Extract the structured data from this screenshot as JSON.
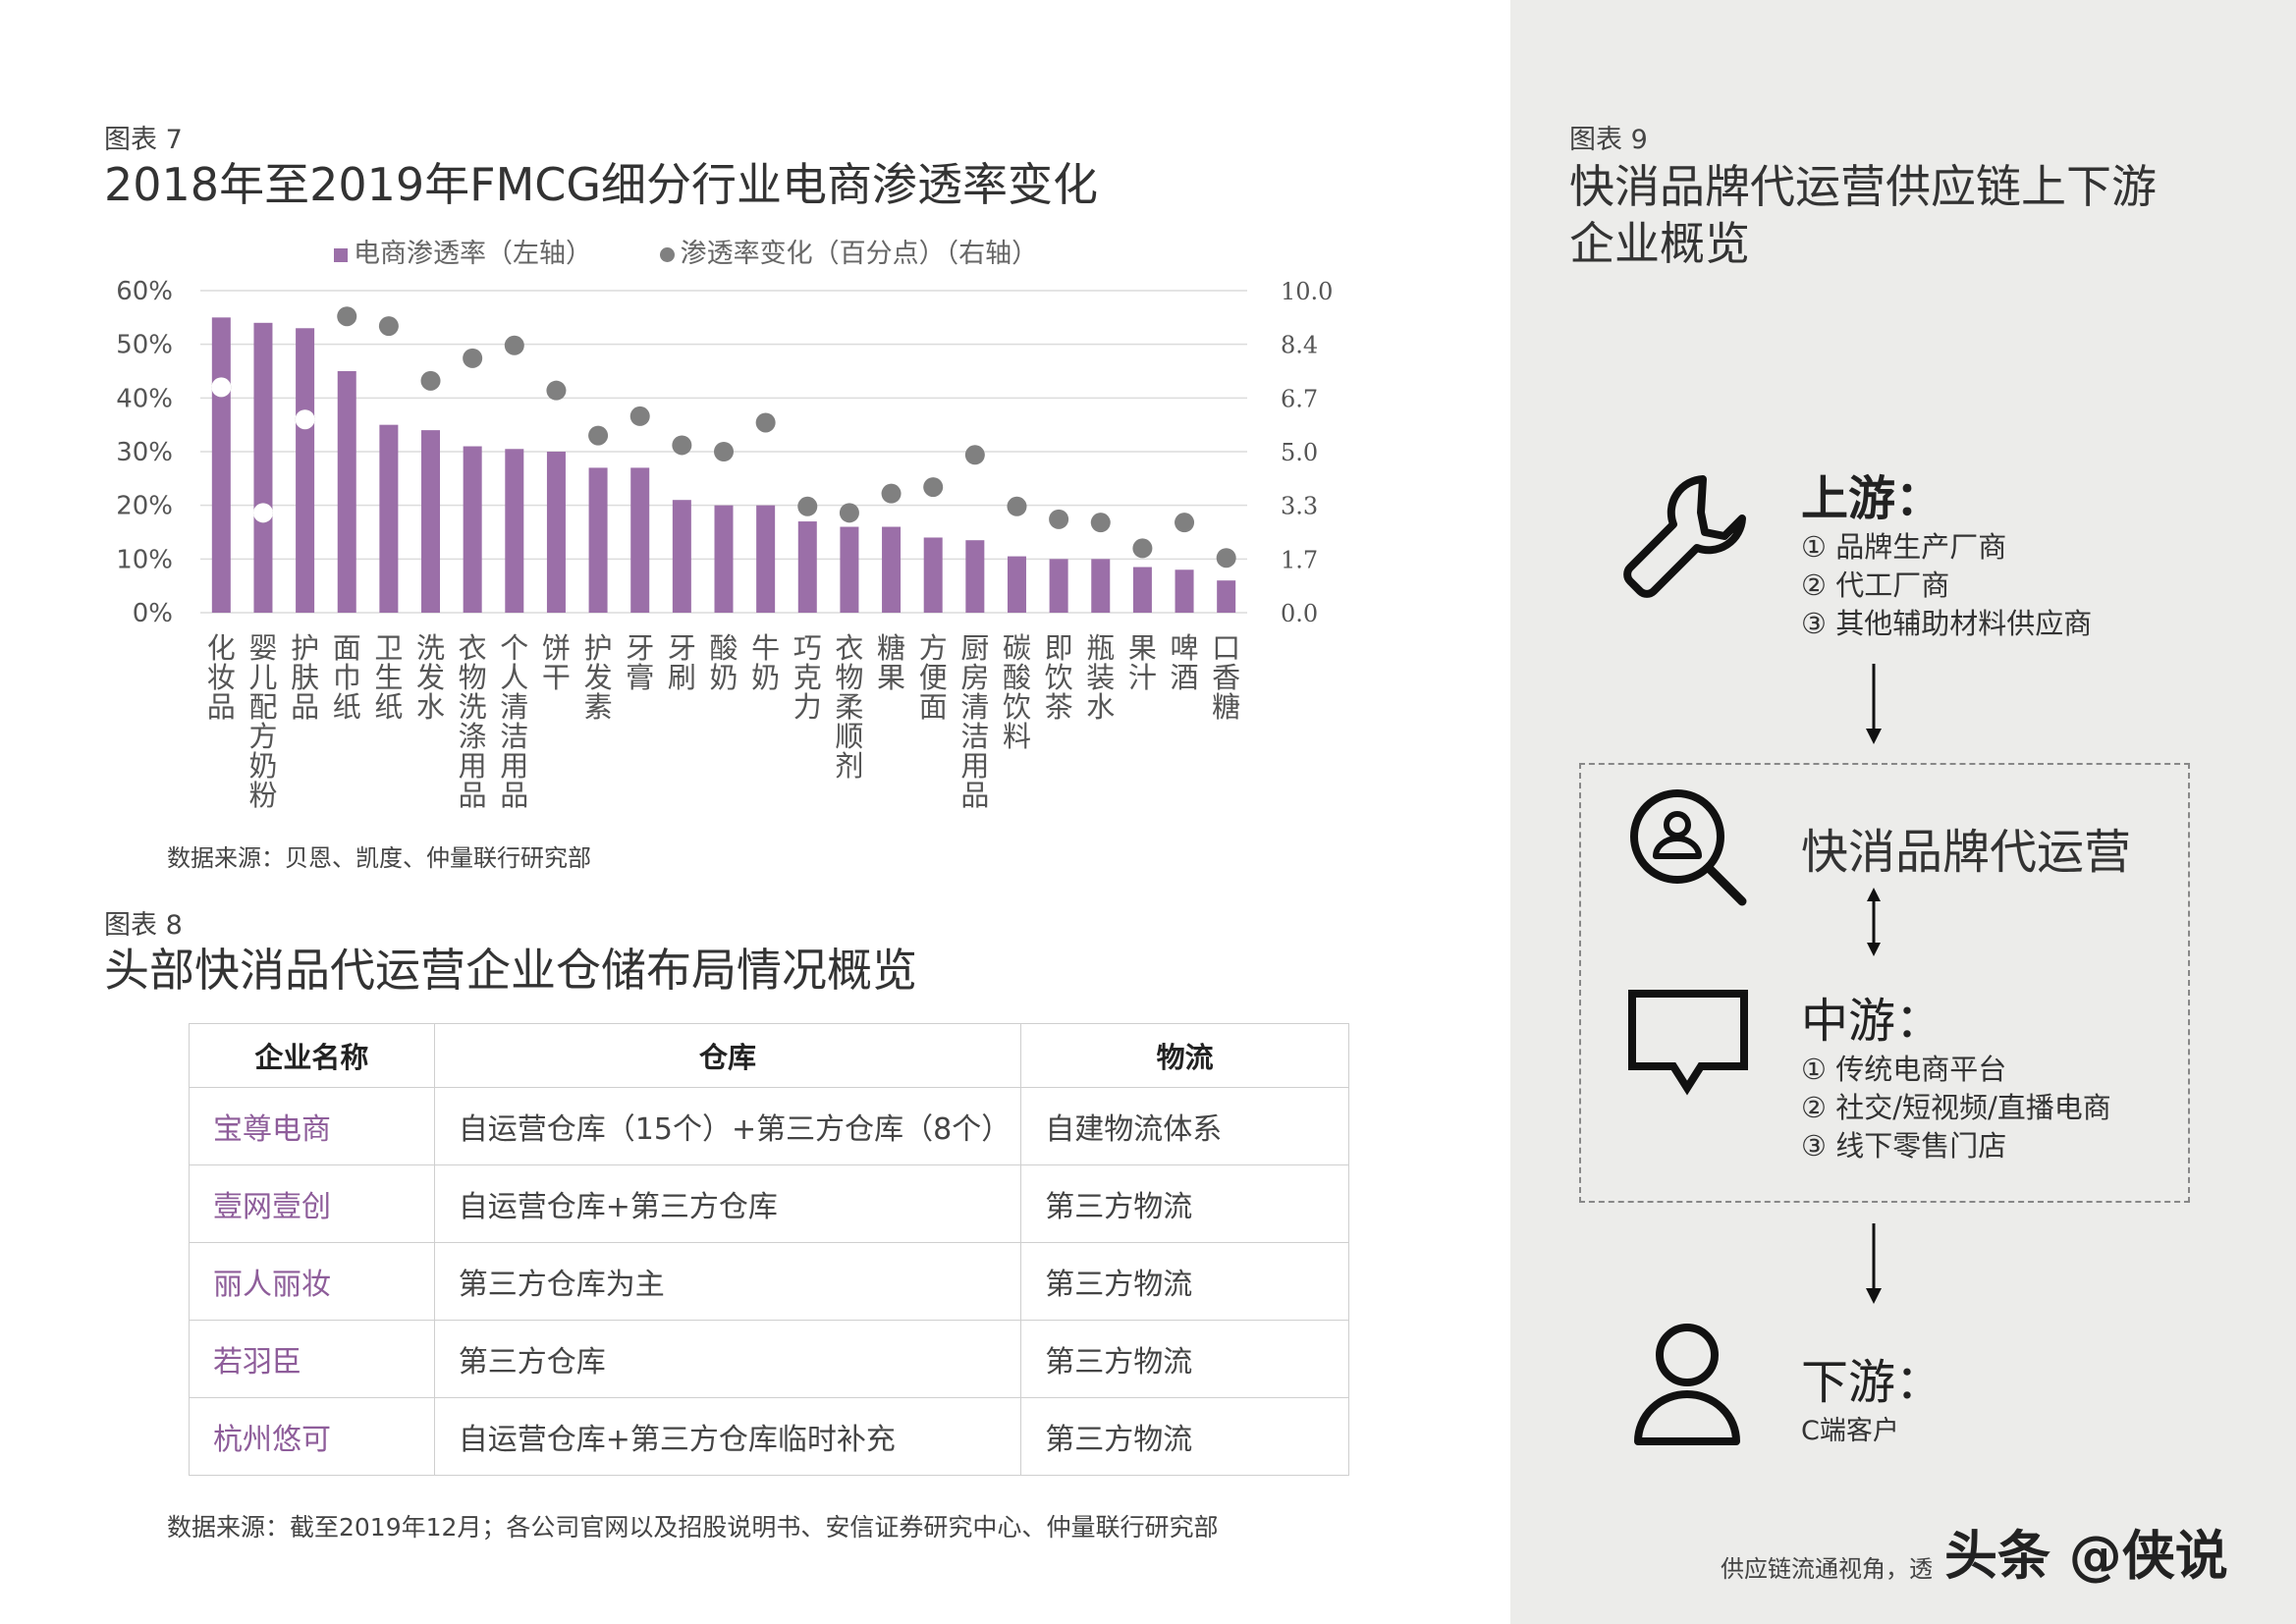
{
  "fig7": {
    "label": "图表 7",
    "title": "2018年至2019年FMCG细分行业电商渗透率变化",
    "legend_bar": "电商渗透率（左轴）",
    "legend_dot": "渗透率变化（百分点）（右轴）",
    "source": "数据来源：贝恩、凯度、仲量联行研究部"
  },
  "chart_data": {
    "type": "bar",
    "categories": [
      "化妆品",
      "婴儿配方奶粉",
      "护肤品",
      "面巾纸",
      "卫生纸",
      "洗发水",
      "衣物洗涤用品",
      "个人清洁用品",
      "饼干",
      "护发素",
      "牙膏",
      "牙刷",
      "酸奶",
      "牛奶",
      "巧克力",
      "衣物柔顺剂",
      "糖果",
      "方便面",
      "厨房清洁用品",
      "碳酸饮料",
      "即饮茶",
      "瓶装水",
      "果汁",
      "啤酒",
      "口香糖"
    ],
    "series": [
      {
        "name": "电商渗透率（左轴）",
        "axis": "left",
        "type": "bar",
        "color": "#9b6fa8",
        "values": [
          55,
          54,
          53,
          45,
          35,
          34,
          31,
          30.5,
          30,
          27,
          27,
          21,
          20,
          20,
          17,
          16,
          16,
          14,
          13.5,
          10.5,
          10,
          10,
          8.5,
          8,
          6
        ]
      },
      {
        "name": "渗透率变化（百分点）（右轴）",
        "axis": "right",
        "type": "scatter",
        "color": "#808080",
        "values": [
          7.0,
          3.1,
          6.0,
          9.2,
          8.9,
          7.2,
          7.9,
          8.3,
          6.9,
          5.5,
          6.1,
          5.2,
          5.0,
          5.9,
          3.3,
          3.1,
          3.7,
          3.9,
          4.9,
          3.3,
          2.9,
          2.8,
          2.0,
          2.8,
          1.7
        ]
      }
    ],
    "y_left": {
      "ticks": [
        "0%",
        "10%",
        "20%",
        "30%",
        "40%",
        "50%",
        "60%"
      ],
      "ylim": [
        0,
        60
      ]
    },
    "y_right": {
      "ticks": [
        "0.0",
        "1.7",
        "3.3",
        "5.0",
        "6.7",
        "8.4",
        "10.0"
      ],
      "ylim": [
        0,
        10
      ]
    },
    "grid": true
  },
  "fig8": {
    "label": "图表 8",
    "title": "头部快消品代运营企业仓储布局情况概览",
    "headers": [
      "企业名称",
      "仓库",
      "物流"
    ],
    "rows": [
      [
        "宝尊电商",
        "自运营仓库（15个）+第三方仓库（8个）",
        "自建物流体系"
      ],
      [
        "壹网壹创",
        "自运营仓库+第三方仓库",
        "第三方物流"
      ],
      [
        "丽人丽妆",
        "第三方仓库为主",
        "第三方物流"
      ],
      [
        "若羽臣",
        "第三方仓库",
        "第三方物流"
      ],
      [
        "杭州悠可",
        "自运营仓库+第三方仓库临时补充",
        "第三方物流"
      ]
    ],
    "source": "数据来源：截至2019年12月；各公司官网以及招股说明书、安信证券研究中心、仲量联行研究部"
  },
  "fig9": {
    "label": "图表 9",
    "title_line1": "快消品牌代运营供应链上下游",
    "title_line2": "企业概览",
    "upstream": {
      "title": "上游：",
      "items": [
        "① 品牌生产厂商",
        "② 代工厂商",
        "③ 其他辅助材料供应商"
      ],
      "icon": "wrench-icon"
    },
    "operator": {
      "title": "快消品牌代运营",
      "icon": "user-search-icon"
    },
    "midstream": {
      "title": "中游：",
      "items": [
        "① 传统电商平台",
        "② 社交/短视频/直播电商",
        "③ 线下零售门店"
      ],
      "icon": "chat-bubble-icon"
    },
    "downstream": {
      "title": "下游：",
      "items": [
        "C端客户"
      ],
      "icon": "person-icon"
    }
  },
  "footer": {
    "text": "供应链流通视角，透",
    "watermark": "头条 @侠说"
  }
}
